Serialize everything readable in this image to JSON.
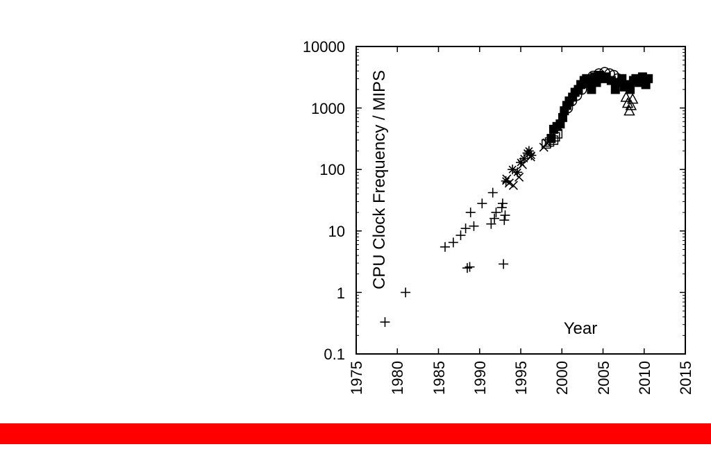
{
  "colors": {
    "band": "#ff0000",
    "ink": "#000000",
    "background": "#ffffff"
  },
  "chart_data": {
    "type": "scatter",
    "title": "",
    "xlabel": "Year",
    "ylabel": "CPU Clock Frequency / MIPS",
    "xlim": [
      1975,
      2015
    ],
    "ylim": [
      0.1,
      10000
    ],
    "y_scale": "log",
    "x_ticks": [
      "1975",
      "1980",
      "1985",
      "1990",
      "1995",
      "2000",
      "2005",
      "2010",
      "2015"
    ],
    "y_ticks": [
      "0.1",
      "1",
      "10",
      "100",
      "1000",
      "10000"
    ],
    "grid": false,
    "legend": "none",
    "series": [
      {
        "marker": "plus",
        "points": [
          [
            1978.5,
            0.33
          ],
          [
            1981,
            1.0
          ],
          [
            1985.8,
            5.5
          ],
          [
            1986.8,
            6.5
          ],
          [
            1987.7,
            8.5
          ],
          [
            1988.3,
            11
          ],
          [
            1988.5,
            2.5
          ],
          [
            1988.8,
            2.6
          ],
          [
            1988.9,
            20
          ],
          [
            1989.3,
            12
          ],
          [
            1990.3,
            28
          ],
          [
            1991.4,
            13
          ],
          [
            1991.6,
            42
          ],
          [
            1991.8,
            16
          ],
          [
            1992.0,
            20
          ],
          [
            1992.7,
            24
          ],
          [
            1992.8,
            28
          ],
          [
            1992.9,
            2.9
          ],
          [
            1993.0,
            15
          ],
          [
            1993.1,
            18
          ]
        ]
      },
      {
        "marker": "x",
        "points": [
          [
            1993.3,
            70
          ],
          [
            1993.6,
            60
          ],
          [
            1994.1,
            55
          ],
          [
            1994.8,
            75
          ],
          [
            1995.2,
            120
          ],
          [
            1996.2,
            160
          ],
          [
            1997.8,
            230
          ],
          [
            1998.2,
            270
          ]
        ]
      },
      {
        "marker": "star",
        "points": [
          [
            1993.2,
            65
          ],
          [
            1994.0,
            100
          ],
          [
            1994.6,
            90
          ],
          [
            1995.0,
            130
          ],
          [
            1995.4,
            150
          ],
          [
            1995.8,
            185
          ],
          [
            1996.0,
            200
          ],
          [
            1996.3,
            170
          ]
        ]
      },
      {
        "marker": "square-open",
        "points": [
          [
            1998.1,
            260
          ],
          [
            1998.5,
            280
          ],
          [
            1999.0,
            300
          ],
          [
            1999.2,
            340
          ],
          [
            1999.5,
            380
          ]
        ]
      },
      {
        "marker": "square-filled",
        "points": [
          [
            1998.7,
            320
          ],
          [
            1999.0,
            450
          ],
          [
            1999.4,
            500
          ],
          [
            1999.8,
            550
          ],
          [
            2000.1,
            700
          ],
          [
            2000.3,
            900
          ],
          [
            2000.6,
            1100
          ],
          [
            2000.9,
            1300
          ],
          [
            2001.3,
            1500
          ],
          [
            2001.6,
            1800
          ],
          [
            2002.0,
            2000
          ],
          [
            2002.3,
            2400
          ],
          [
            2002.7,
            2800
          ],
          [
            2003.0,
            3000
          ],
          [
            2003.3,
            2500
          ],
          [
            2003.6,
            2000
          ],
          [
            2004.0,
            3200
          ],
          [
            2004.2,
            2600
          ],
          [
            2004.6,
            3400
          ],
          [
            2005.0,
            3000
          ],
          [
            2005.4,
            3200
          ],
          [
            2006.0,
            2800
          ],
          [
            2006.5,
            2000
          ],
          [
            2007.0,
            2600
          ],
          [
            2007.3,
            3000
          ],
          [
            2007.6,
            2200
          ],
          [
            2008.0,
            2400
          ],
          [
            2008.3,
            2000
          ],
          [
            2008.7,
            2800
          ],
          [
            2009.0,
            3000
          ],
          [
            2009.4,
            2600
          ],
          [
            2009.8,
            3200
          ],
          [
            2010.2,
            2400
          ],
          [
            2010.5,
            3000
          ]
        ]
      },
      {
        "marker": "circle-open",
        "points": [
          [
            2000.7,
            1000
          ],
          [
            2001.2,
            1300
          ],
          [
            2001.8,
            1600
          ],
          [
            2002.4,
            2000
          ],
          [
            2003.1,
            2700
          ],
          [
            2003.8,
            3300
          ],
          [
            2004.5,
            3600
          ],
          [
            2005.2,
            3800
          ],
          [
            2005.8,
            3600
          ],
          [
            2006.3,
            3400
          ],
          [
            2006.8,
            3000
          ]
        ]
      },
      {
        "marker": "triangle-open",
        "points": [
          [
            2007.8,
            1500
          ],
          [
            2008.0,
            1200
          ],
          [
            2008.2,
            900
          ],
          [
            2008.4,
            1100
          ],
          [
            2008.6,
            1400
          ]
        ]
      }
    ]
  }
}
